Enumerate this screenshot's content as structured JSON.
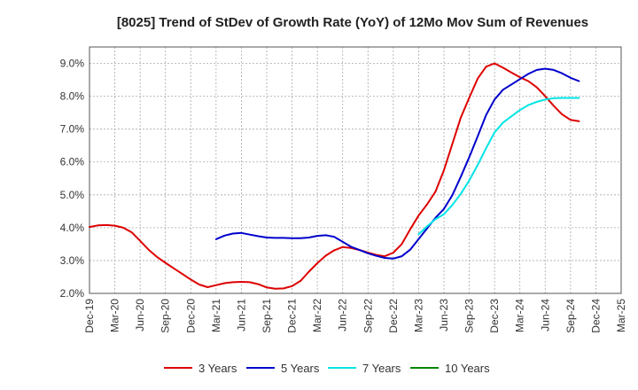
{
  "chart_data": {
    "type": "line",
    "title": "[8025]  Trend of StDev of Growth Rate (YoY) of 12Mo Mov Sum of Revenues",
    "xlabel": "",
    "ylabel": "",
    "ylim": [
      2.0,
      9.5
    ],
    "y_ticks": [
      2.0,
      3.0,
      4.0,
      5.0,
      6.0,
      7.0,
      8.0,
      9.0
    ],
    "y_tick_labels": [
      "2.0%",
      "3.0%",
      "4.0%",
      "5.0%",
      "6.0%",
      "7.0%",
      "8.0%",
      "9.0%"
    ],
    "x_start": "Dec-19",
    "x_count_months": 63,
    "x_tick_labels": [
      "Dec-19",
      "Mar-20",
      "Jun-20",
      "Sep-20",
      "Dec-20",
      "Mar-21",
      "Jun-21",
      "Sep-21",
      "Dec-21",
      "Mar-22",
      "Jun-22",
      "Sep-22",
      "Dec-22",
      "Mar-23",
      "Jun-23",
      "Sep-23",
      "Dec-23",
      "Mar-24",
      "Jun-24",
      "Sep-24",
      "Dec-24",
      "Mar-25"
    ],
    "grid": true,
    "legend_position": "bottom",
    "series": [
      {
        "name": "3 Years",
        "color": "#dd0000",
        "start_index": 0,
        "values": [
          4.02,
          4.07,
          4.08,
          4.06,
          4.0,
          3.86,
          3.6,
          3.33,
          3.11,
          2.93,
          2.76,
          2.59,
          2.42,
          2.27,
          2.19,
          2.25,
          2.31,
          2.34,
          2.35,
          2.34,
          2.28,
          2.18,
          2.14,
          2.15,
          2.22,
          2.38,
          2.66,
          2.92,
          3.15,
          3.31,
          3.41,
          3.38,
          3.32,
          3.24,
          3.17,
          3.13,
          3.24,
          3.5,
          3.95,
          4.37,
          4.71,
          5.1,
          5.75,
          6.55,
          7.35,
          7.96,
          8.54,
          8.9,
          9.0,
          8.87,
          8.72,
          8.58,
          8.46,
          8.27,
          8.0,
          7.71,
          7.45,
          7.28,
          7.24
        ]
      },
      {
        "name": "5 Years",
        "color": "#0000cc",
        "start_index": 15,
        "values": [
          3.65,
          3.76,
          3.82,
          3.84,
          3.79,
          3.74,
          3.7,
          3.69,
          3.69,
          3.68,
          3.68,
          3.7,
          3.75,
          3.77,
          3.72,
          3.57,
          3.42,
          3.32,
          3.22,
          3.14,
          3.08,
          3.06,
          3.13,
          3.33,
          3.65,
          3.98,
          4.3,
          4.57,
          4.99,
          5.55,
          6.15,
          6.78,
          7.43,
          7.9,
          8.2,
          8.36,
          8.52,
          8.68,
          8.8,
          8.84,
          8.8,
          8.7,
          8.56,
          8.46
        ]
      },
      {
        "name": "7 Years",
        "color": "#00e5e5",
        "start_index": 39,
        "values": [
          3.8,
          4.04,
          4.26,
          4.41,
          4.69,
          5.03,
          5.44,
          5.91,
          6.42,
          6.9,
          7.2,
          7.39,
          7.58,
          7.73,
          7.83,
          7.9,
          7.94,
          7.95,
          7.95,
          7.95
        ]
      },
      {
        "name": "10 Years",
        "color": "#008800",
        "start_index": 0,
        "values": []
      }
    ]
  }
}
